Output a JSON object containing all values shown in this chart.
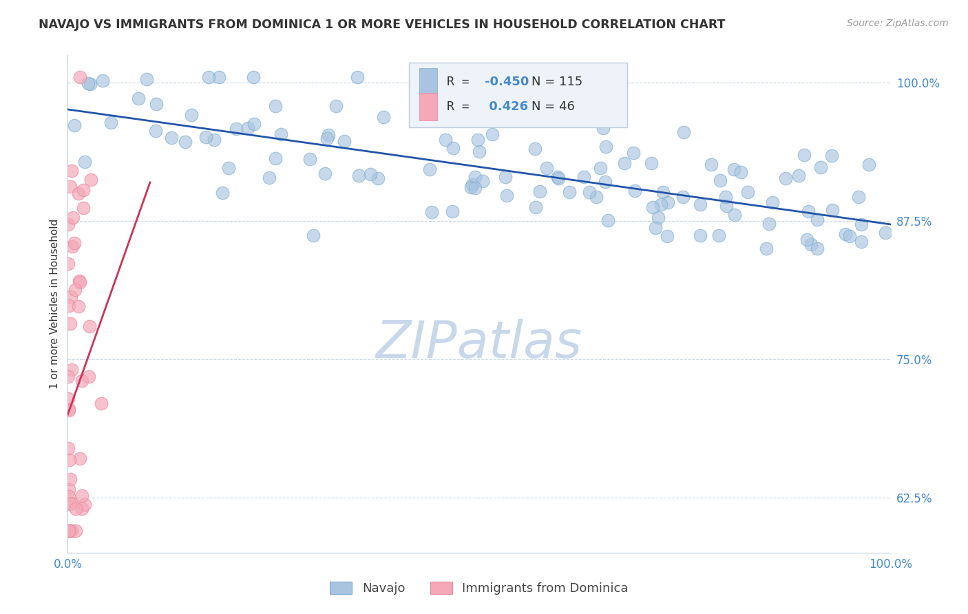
{
  "title": "NAVAJO VS IMMIGRANTS FROM DOMINICA 1 OR MORE VEHICLES IN HOUSEHOLD CORRELATION CHART",
  "source_text": "Source: ZipAtlas.com",
  "ylabel": "1 or more Vehicles in Household",
  "xlim": [
    0.0,
    1.0
  ],
  "ylim": [
    0.575,
    1.025
  ],
  "yticks": [
    0.625,
    0.75,
    0.875,
    1.0
  ],
  "ytick_labels": [
    "62.5%",
    "75.0%",
    "87.5%",
    "100.0%"
  ],
  "navajo_R": -0.45,
  "navajo_N": 115,
  "dominica_R": 0.426,
  "dominica_N": 46,
  "navajo_color": "#a8c4e0",
  "navajo_edge_color": "#7aaace",
  "dominica_color": "#f4a8b8",
  "dominica_edge_color": "#e888a0",
  "navajo_line_color": "#2255aa",
  "dominica_line_color": "#cc3355",
  "watermark": "ZIPatlas",
  "watermark_color": "#c8d8ea",
  "legend_box_color": "#eef3fa",
  "legend_text_color": "#333333",
  "legend_R_color": "#4488cc",
  "tick_color": "#4488cc",
  "grid_color": "#c8d8e8",
  "spine_color": "#bbccdd",
  "title_color": "#333333",
  "source_color": "#999999",
  "ylabel_color": "#333333"
}
